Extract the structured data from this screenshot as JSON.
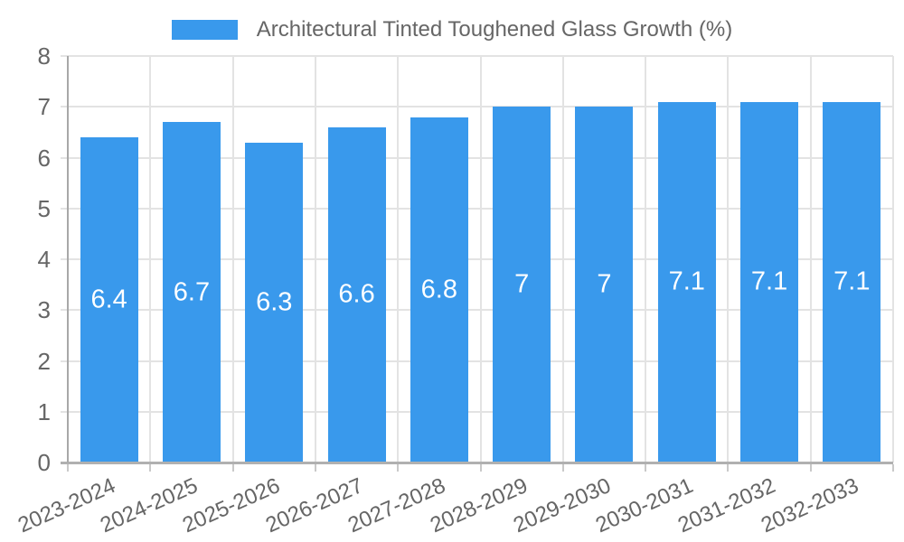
{
  "legend": {
    "label": "Architectural Tinted Toughened Glass Growth (%)",
    "swatch_color": "#3999ec"
  },
  "chart_data": {
    "type": "bar",
    "title": "Architectural Tinted Toughened Glass Growth (%)",
    "categories": [
      "2023-2024",
      "2024-2025",
      "2025-2026",
      "2026-2027",
      "2027-2028",
      "2028-2029",
      "2029-2030",
      "2030-2031",
      "2031-2032",
      "2032-2033"
    ],
    "values": [
      6.4,
      6.7,
      6.3,
      6.6,
      6.8,
      7,
      7,
      7.1,
      7.1,
      7.1
    ],
    "value_labels": [
      "6.4",
      "6.7",
      "6.3",
      "6.6",
      "6.8",
      "7",
      "7",
      "7.1",
      "7.1",
      "7.1"
    ],
    "xlabel": "",
    "ylabel": "",
    "ylim": [
      0,
      8
    ],
    "yticks": [
      0,
      1,
      2,
      3,
      4,
      5,
      6,
      7,
      8
    ],
    "grid": true,
    "legend_position": "top",
    "bar_color": "#3999ec",
    "value_label_color": "#ffffff",
    "grid_color": "#e3e3e3",
    "axis_color": "#b0b0b0",
    "tick_text_color": "#666666"
  }
}
